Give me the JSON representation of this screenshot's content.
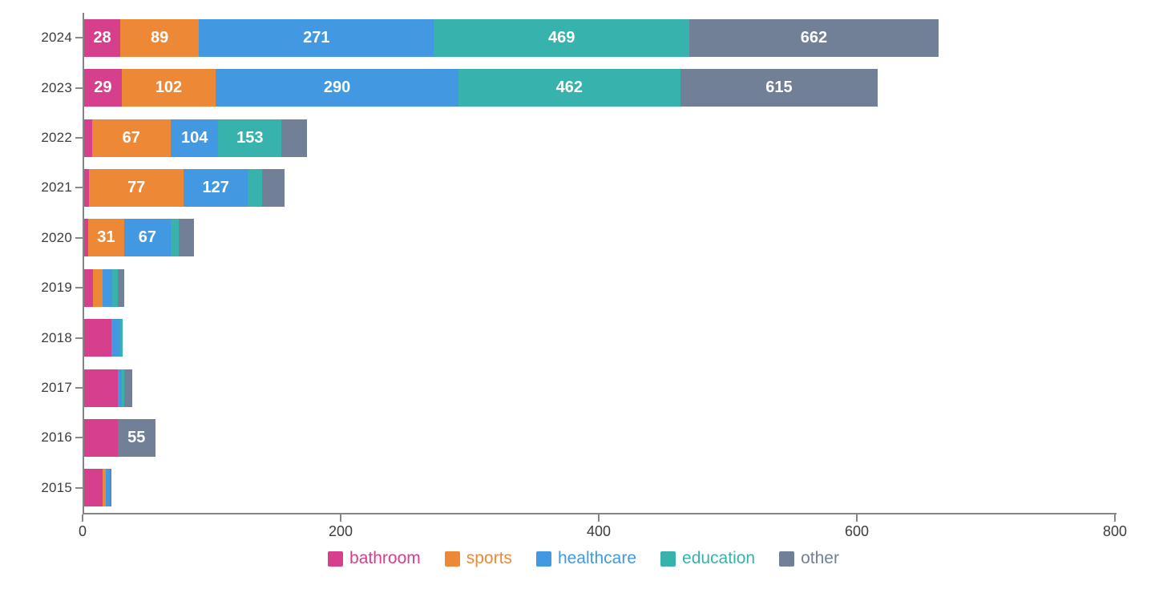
{
  "chart_data": {
    "type": "bar",
    "orientation": "horizontal",
    "stacked": true,
    "values_shown_are_cumulative": true,
    "title": "",
    "xlabel": "",
    "ylabel": "",
    "xlim": [
      0,
      800
    ],
    "grid": false,
    "legend_position": "bottom-center",
    "categories": [
      "2024",
      "2023",
      "2022",
      "2021",
      "2020",
      "2019",
      "2018",
      "2017",
      "2016",
      "2015"
    ],
    "series_names": [
      "bathroom",
      "sports",
      "healthcare",
      "education",
      "other"
    ],
    "series_colors": [
      "#D53F8C",
      "#ED8936",
      "#4299E1",
      "#38B2AC",
      "#718096"
    ],
    "rows": [
      {
        "year": "2024",
        "cumulative": [
          28,
          89,
          271,
          469,
          662
        ],
        "labels": [
          "28",
          "89",
          "271",
          "469",
          "662"
        ]
      },
      {
        "year": "2023",
        "cumulative": [
          29,
          102,
          290,
          462,
          615
        ],
        "labels": [
          "29",
          "102",
          "290",
          "462",
          "615"
        ]
      },
      {
        "year": "2022",
        "cumulative": [
          6,
          67,
          104,
          153,
          173
        ],
        "labels": [
          "",
          "67",
          "104",
          "153",
          ""
        ]
      },
      {
        "year": "2021",
        "cumulative": [
          4,
          77,
          127,
          138,
          155
        ],
        "labels": [
          "",
          "77",
          "127",
          "",
          ""
        ]
      },
      {
        "year": "2020",
        "cumulative": [
          3,
          31,
          67,
          73,
          85
        ],
        "labels": [
          "",
          "31",
          "67",
          "",
          ""
        ]
      },
      {
        "year": "2019",
        "cumulative": [
          7,
          14,
          22,
          26,
          31
        ],
        "labels": [
          "",
          "",
          "",
          "",
          ""
        ]
      },
      {
        "year": "2018",
        "cumulative": [
          21,
          21,
          28,
          30,
          30
        ],
        "labels": [
          "",
          "",
          "",
          "",
          ""
        ]
      },
      {
        "year": "2017",
        "cumulative": [
          26,
          26,
          29,
          31,
          37
        ],
        "labels": [
          "",
          "",
          "",
          "",
          ""
        ]
      },
      {
        "year": "2016",
        "cumulative": [
          26,
          26,
          26,
          26,
          55
        ],
        "labels": [
          "",
          "",
          "",
          "",
          "55"
        ]
      },
      {
        "year": "2015",
        "cumulative": [
          14,
          17,
          20,
          20,
          21
        ],
        "labels": [
          "",
          "",
          "",
          "",
          ""
        ]
      }
    ],
    "x_axis": {
      "tick_labels": [
        "0",
        "200",
        "400",
        "600",
        "800"
      ],
      "tick_values": [
        0,
        200,
        400,
        600,
        800
      ]
    },
    "legend": [
      {
        "label": "bathroom",
        "color": "#D53F8C"
      },
      {
        "label": "sports",
        "color": "#ED8936"
      },
      {
        "label": "healthcare",
        "color": "#4299E1"
      },
      {
        "label": "education",
        "color": "#38B2AC"
      },
      {
        "label": "other",
        "color": "#718096"
      }
    ],
    "colors": {
      "axis_line": "#868686",
      "tick_mark": "#8a8a8a",
      "axis_text": "#3d3d3d",
      "bar_value_text": "#ffffff",
      "background": "#ffffff"
    }
  }
}
